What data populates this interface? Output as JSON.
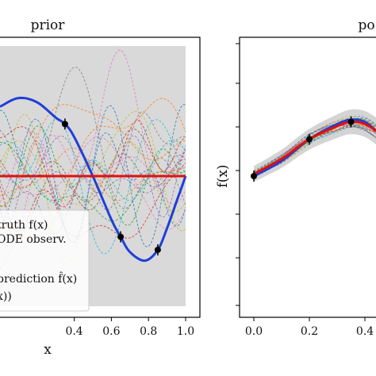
{
  "chart_data": [
    {
      "type": "line",
      "title": "prior",
      "xlabel": "x",
      "ylabel": "",
      "xlim": [
        0.0,
        1.0
      ],
      "ylim": [
        -3.2,
        3.2
      ],
      "x_ticks": [
        "0.4",
        "0.6",
        "0.8",
        "1.0"
      ],
      "grid": false,
      "legend_placement": "bottom-left",
      "legend_entries": [
        "truth f(x)",
        "ODE observ.",
        "prediction f̂(x)",
        "x))"
      ],
      "series": [
        {
          "name": "truth f(x)",
          "style": "solid",
          "color": "#1f3fd6",
          "x": [
            0.0,
            0.1,
            0.2,
            0.3,
            0.35,
            0.4,
            0.5,
            0.6,
            0.65,
            0.7,
            0.78,
            0.85,
            0.9,
            0.95,
            1.0
          ],
          "y": [
            1.6,
            1.8,
            1.7,
            1.35,
            1.2,
            0.9,
            0.0,
            -1.0,
            -1.4,
            -1.75,
            -1.95,
            -1.7,
            -1.2,
            -0.6,
            0.0
          ]
        },
        {
          "name": "prediction f̂(x)",
          "style": "solid",
          "color": "#e01010",
          "x": [
            0.0,
            1.0
          ],
          "y": [
            0.0,
            0.0
          ]
        }
      ],
      "observations": {
        "name": "ODE observ.",
        "x": [
          0.35,
          0.65,
          0.85
        ],
        "y": [
          1.2,
          -1.4,
          -1.7
        ]
      },
      "band": {
        "label": "",
        "color": "#d9d9d9",
        "lower": -3.0,
        "upper": 3.0
      },
      "samples_note": "prior sample paths (dashed, multicolor)"
    },
    {
      "type": "line",
      "title": "po",
      "xlabel": "",
      "ylabel": "f(x)",
      "xlim": [
        -0.03,
        0.5
      ],
      "ylim": [
        -3.2,
        3.2
      ],
      "x_ticks": [
        "0.0",
        "0.2",
        "0.4"
      ],
      "grid": false,
      "series": [
        {
          "name": "",
          "style": "solid",
          "color": "#1f3fd6",
          "x": [
            0.0,
            0.1,
            0.2,
            0.3,
            0.35,
            0.4,
            0.45,
            0.5
          ],
          "y": [
            0.0,
            0.35,
            0.85,
            1.2,
            1.3,
            1.25,
            1.0,
            0.8
          ]
        },
        {
          "name": "",
          "style": "solid",
          "color": "#e01010",
          "x": [
            0.0,
            0.1,
            0.2,
            0.3,
            0.35,
            0.4,
            0.45,
            0.5
          ],
          "y": [
            0.05,
            0.4,
            0.85,
            1.15,
            1.25,
            1.2,
            1.0,
            0.8
          ]
        }
      ],
      "observations": {
        "x": [
          0.0,
          0.2,
          0.35
        ],
        "y": [
          0.0,
          0.85,
          1.25
        ]
      }
    }
  ],
  "colors": {
    "truth": "#1f3fd6",
    "prediction": "#e01010",
    "band": "#d9d9d9",
    "samples": [
      "#e377c2",
      "#ff7f0e",
      "#2ca02c",
      "#1f77b4",
      "#9467bd",
      "#8c564b",
      "#bcbd22",
      "#17becf",
      "#d62728",
      "#7f7f7f"
    ]
  }
}
